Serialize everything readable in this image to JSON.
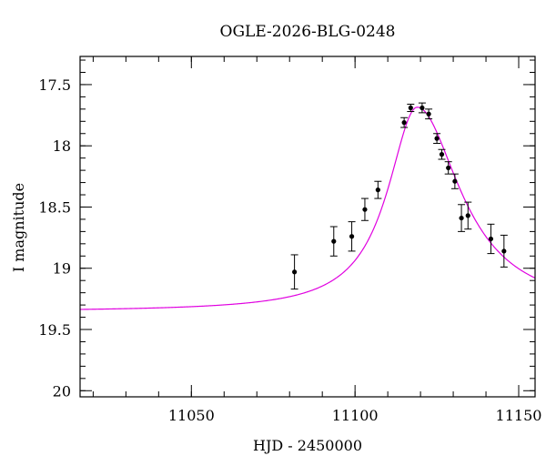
{
  "chart_data": {
    "type": "scatter",
    "title": "OGLE-2026-BLG-0248",
    "xlabel": "HJD - 2450000",
    "ylabel": "I magnitude",
    "xlim": [
      11016,
      11155
    ],
    "ylim": [
      20.05,
      17.27
    ],
    "y_inverted": true,
    "x_major_ticks": [
      11050,
      11100,
      11150
    ],
    "x_tick_labels": [
      "11050",
      "11100",
      "11150"
    ],
    "x_minor_step": 10,
    "y_major_ticks": [
      17.5,
      18,
      18.5,
      19,
      19.5,
      20
    ],
    "y_tick_labels": [
      "17.5",
      "18",
      "18.5",
      "19",
      "19.5",
      "20"
    ],
    "y_minor_step": 0.1,
    "grid": false,
    "colors": {
      "model": "#e000e0",
      "points": "#000000",
      "axes": "#000000"
    },
    "model": {
      "name": "",
      "baseline_mag": 19.355,
      "peak_mag": 17.685,
      "t0": 11119.0,
      "rise_timescale": 11.0,
      "fall_timescale": 16.0
    },
    "series": [
      {
        "name": "",
        "points": [
          {
            "x": 11081.5,
            "y": 19.03,
            "err": 0.14
          },
          {
            "x": 11093.5,
            "y": 18.78,
            "err": 0.12
          },
          {
            "x": 11099.0,
            "y": 18.74,
            "err": 0.12
          },
          {
            "x": 11103.0,
            "y": 18.52,
            "err": 0.09
          },
          {
            "x": 11107.0,
            "y": 18.36,
            "err": 0.07
          },
          {
            "x": 11115.0,
            "y": 17.81,
            "err": 0.04
          },
          {
            "x": 11117.0,
            "y": 17.69,
            "err": 0.03
          },
          {
            "x": 11120.5,
            "y": 17.69,
            "err": 0.04
          },
          {
            "x": 11122.5,
            "y": 17.74,
            "err": 0.04
          },
          {
            "x": 11125.0,
            "y": 17.94,
            "err": 0.04
          },
          {
            "x": 11126.5,
            "y": 18.07,
            "err": 0.04
          },
          {
            "x": 11128.5,
            "y": 18.18,
            "err": 0.05
          },
          {
            "x": 11130.5,
            "y": 18.29,
            "err": 0.06
          },
          {
            "x": 11132.5,
            "y": 18.59,
            "err": 0.11
          },
          {
            "x": 11134.5,
            "y": 18.57,
            "err": 0.11
          },
          {
            "x": 11141.5,
            "y": 18.76,
            "err": 0.12
          },
          {
            "x": 11145.5,
            "y": 18.86,
            "err": 0.13
          }
        ]
      }
    ]
  }
}
